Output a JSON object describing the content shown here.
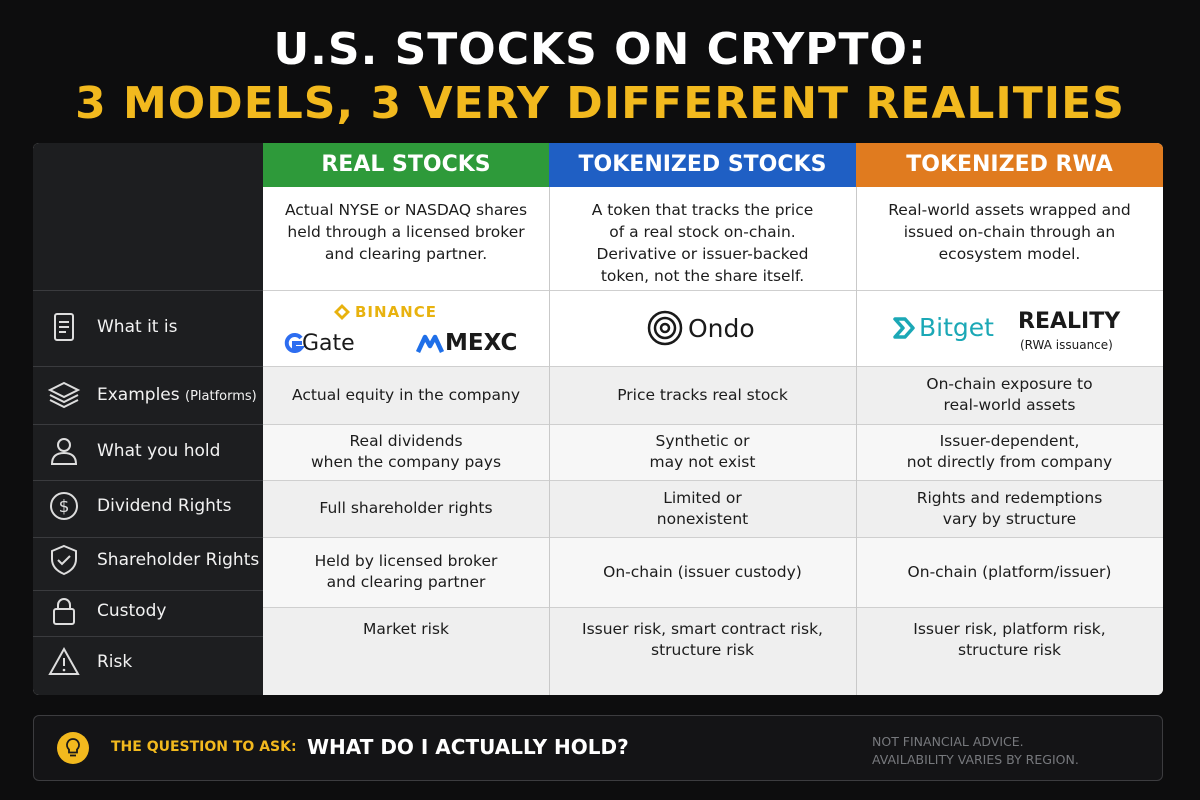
{
  "header": {
    "title": "U.S. STOCKS ON CRYPTO:",
    "subtitle": "3 MODELS, 3 VERY DIFFERENT REALITIES"
  },
  "table": {
    "row_labels": [
      {
        "label": "What it is"
      },
      {
        "label": "Examples",
        "note": "(Platforms)"
      },
      {
        "label": "What you hold"
      },
      {
        "label": "Dividend Rights"
      },
      {
        "label": "Shareholder Rights"
      },
      {
        "label": "Custody"
      },
      {
        "label": "Risk"
      }
    ],
    "columns": [
      {
        "header": "REAL STOCKS",
        "color": "#2e9a3a",
        "description": [
          "Actual NYSE or NASDAQ shares",
          "held through a licensed broker",
          "and clearing partner."
        ],
        "logos": [
          "BINANCE",
          "Gate",
          "MEXC"
        ],
        "cells": [
          [
            "Actual equity in the company"
          ],
          [
            "Real dividends",
            "when the company pays"
          ],
          [
            "Full shareholder rights"
          ],
          [
            "Held by licensed broker",
            "and clearing partner"
          ],
          [
            "Market risk"
          ]
        ]
      },
      {
        "header": "TOKENIZED STOCKS",
        "color": "#1f5fc4",
        "description": [
          "A token that tracks the price",
          "of a real stock on-chain.",
          "Derivative or issuer-backed",
          "token, not the share itself."
        ],
        "logos": [
          "Ondo"
        ],
        "cells": [
          [
            "Price tracks real stock"
          ],
          [
            "Synthetic or",
            "may not exist"
          ],
          [
            "Limited or",
            "nonexistent"
          ],
          [
            "On-chain (issuer custody)"
          ],
          [
            "Issuer risk, smart contract risk,",
            "structure risk"
          ]
        ]
      },
      {
        "header": "TOKENIZED RWA",
        "color": "#e07b1f",
        "description": [
          "Real-world assets wrapped and",
          "issued on-chain through an",
          "ecosystem model."
        ],
        "logos": [
          "Bitget",
          "REALITY",
          "(RWA issuance)"
        ],
        "cells": [
          [
            "On-chain exposure to",
            "real-world assets"
          ],
          [
            "Issuer-dependent,",
            "not directly from company"
          ],
          [
            "Rights and redemptions",
            "vary by structure"
          ],
          [
            "On-chain (platform/issuer)"
          ],
          [
            "Issuer risk, platform risk,",
            "structure risk"
          ]
        ]
      }
    ]
  },
  "footer": {
    "prompt": "THE QUESTION TO ASK:",
    "question": "WHAT DO I ACTUALLY HOLD?",
    "disclaimer": [
      "NOT FINANCIAL ADVICE.",
      "AVAILABILITY VARIES BY REGION."
    ]
  }
}
